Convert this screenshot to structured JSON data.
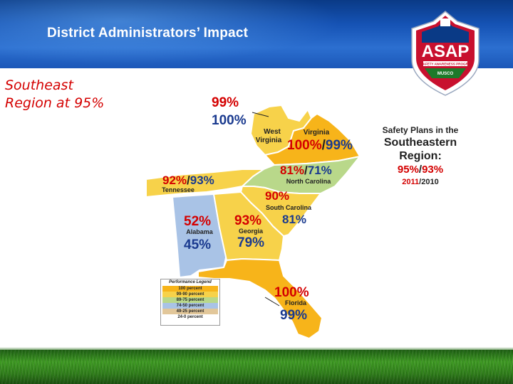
{
  "slide": {
    "title": "District Administrators’ Impact",
    "subtitle_line1": "Southeast",
    "subtitle_line2": "Region at 95%"
  },
  "logo": {
    "acronym": "ASAP",
    "tagline": "A SAFETY AWARENESS PROGRAM",
    "sponsor": "MUSCO",
    "colors": {
      "shield": "#c8102e",
      "inner": "#0a3a86",
      "base": "#1d7a2a"
    }
  },
  "map": {
    "states": [
      {
        "name": "West Virginia",
        "name_line1": "West",
        "name_line2": "Virginia",
        "value_2011": "99%",
        "value_2010": "100%",
        "color": "#f7d24a"
      },
      {
        "name": "Virginia",
        "value_2011": "100%",
        "separator": "/",
        "value_2010": "99%",
        "color": "#f7b41a"
      },
      {
        "name": "North Carolina",
        "value_2011": "81%",
        "separator": "/",
        "value_2010": "71%",
        "color": "#b9d88a"
      },
      {
        "name": "Tennessee",
        "value_2011": "92%",
        "separator": "/",
        "value_2010": "93%",
        "color": "#f7d24a"
      },
      {
        "name": "South Carolina",
        "value_2011": "90%",
        "value_2010": "81%",
        "color": "#f7d24a"
      },
      {
        "name": "Alabama",
        "value_2011": "52%",
        "value_2010": "45%",
        "color": "#a9c3e6"
      },
      {
        "name": "Georgia",
        "value_2011": "93%",
        "value_2010": "79%",
        "color": "#f7d24a"
      },
      {
        "name": "Florida",
        "value_2011": "100%",
        "value_2010": "99%",
        "color": "#f7b41a"
      }
    ],
    "colors": {
      "value_2011": "#d40000",
      "value_2010": "#1a3a8f",
      "border": "#ffffff"
    }
  },
  "legend": {
    "title": "Performance Legend",
    "rows": [
      {
        "label": "100 percent",
        "color": "#f7b41a"
      },
      {
        "label": "99-90 percent",
        "color": "#f7d24a"
      },
      {
        "label": "89-75 percent",
        "color": "#b9d88a"
      },
      {
        "label": "74-50 percent",
        "color": "#a9c3e6"
      },
      {
        "label": "49-25 percent",
        "color": "#e2c79a"
      },
      {
        "label": "24-0 percent",
        "color": "#ffffff"
      }
    ]
  },
  "summary": {
    "line1": "Safety Plans in the",
    "line2": "Southeastern",
    "line3": "Region:",
    "value_2011": "95%",
    "separator": "/",
    "value_2010": "93%",
    "year_2011": "2011",
    "year_separator": "/",
    "year_2010": "2010"
  }
}
